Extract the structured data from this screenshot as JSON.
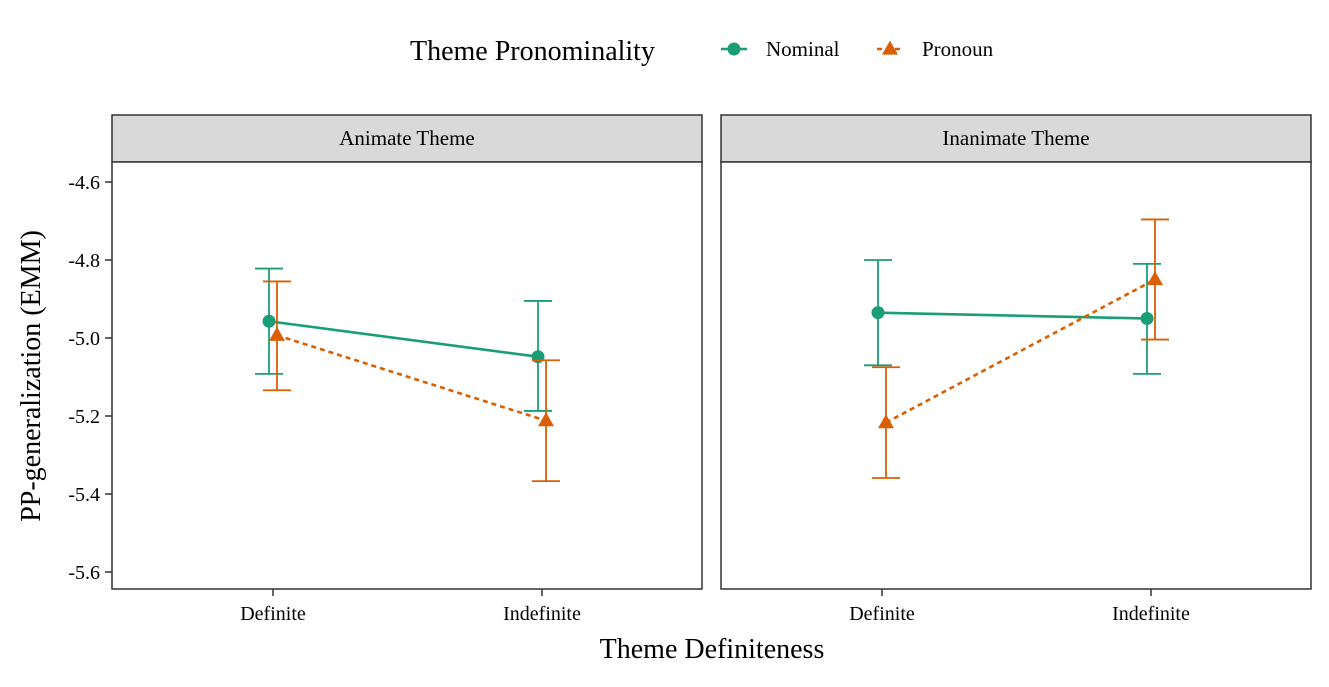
{
  "legend": {
    "title": "Theme Pronominality",
    "entries": [
      {
        "label": "Nominal",
        "color": "#1B9E77",
        "shape": "circle",
        "linetype": "solid"
      },
      {
        "label": "Pronoun",
        "color": "#D95F02",
        "shape": "triangle",
        "linetype": "dashed"
      }
    ]
  },
  "chart_data": {
    "type": "line",
    "xlabel": "Theme Definiteness",
    "ylabel": "PP-generalization (EMM)",
    "ylim": [
      -5.65,
      -4.45
    ],
    "y_ticks": [
      -4.6,
      -4.8,
      -5.0,
      -5.2,
      -5.4,
      -5.6
    ],
    "y_tick_labels": [
      "-4.6",
      "-4.8",
      "-5.0",
      "-5.2",
      "-5.4",
      "-5.6"
    ],
    "categories": [
      "Definite",
      "Indefinite"
    ],
    "grid": false,
    "legend_position": "top",
    "error_bars": true,
    "facets": [
      {
        "label": "Animate Theme",
        "series": [
          {
            "name": "Nominal",
            "values": [
              -4.957,
              -5.048
            ],
            "lower": [
              -5.092,
              -5.187
            ],
            "upper": [
              -4.822,
              -4.905
            ]
          },
          {
            "name": "Pronoun",
            "values": [
              -4.993,
              -5.212
            ],
            "lower": [
              -5.134,
              -5.367
            ],
            "upper": [
              -4.855,
              -5.057
            ]
          }
        ]
      },
      {
        "label": "Inanimate Theme",
        "series": [
          {
            "name": "Nominal",
            "values": [
              -4.935,
              -4.95
            ],
            "lower": [
              -5.07,
              -5.092
            ],
            "upper": [
              -4.8,
              -4.81
            ]
          },
          {
            "name": "Pronoun",
            "values": [
              -5.217,
              -4.85
            ],
            "lower": [
              -5.359,
              -5.004
            ],
            "upper": [
              -5.075,
              -4.696
            ]
          }
        ]
      }
    ]
  }
}
